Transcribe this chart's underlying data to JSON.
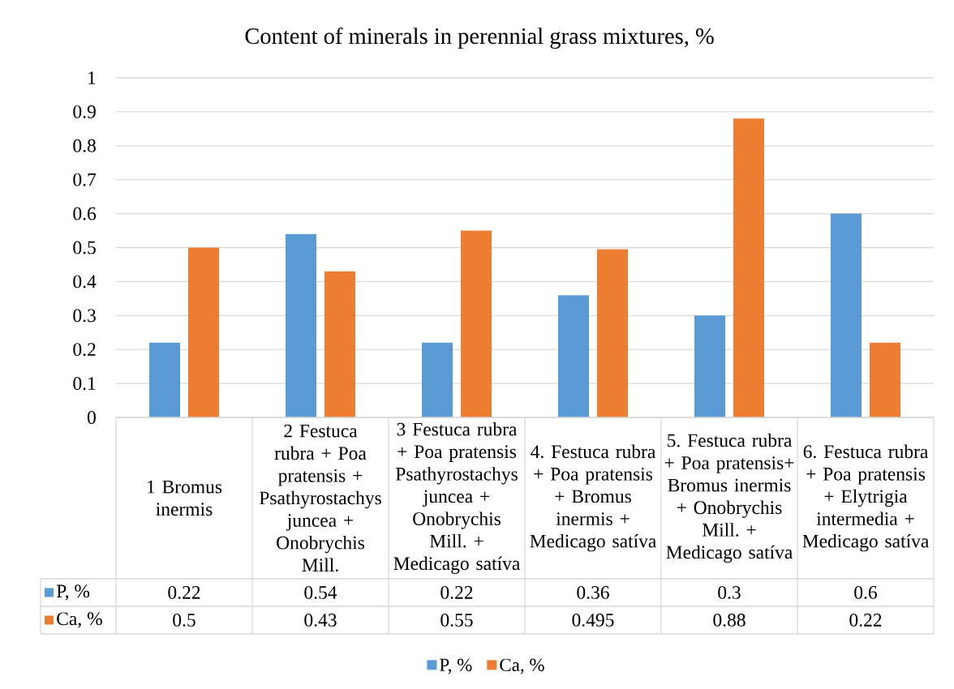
{
  "chart_data": {
    "type": "bar",
    "title": "Content of minerals in perennial grass mixtures, %",
    "categories": [
      "1 Bromus inermis",
      "2 Festuca rubra + Poa pratensis + Psathyrostachys juncea + Onobrychis Mill.",
      "3 Festuca rubra + Poa pratensis Psathyrostachys juncea + Onobrychis Mill. + Medicago satíva",
      "4. Festuca rubra + Poa pratensis + Bromus inermis + Medicago satíva",
      "5. Festuca rubra + Poa pratensis+Bromus inermis + Onobrychis Mill. + Medicago satíva",
      "6. Festuca rubra + Poa pratensis + Elytrigia intermedia + Medicago satíva"
    ],
    "series": [
      {
        "name": "P, %",
        "color": "#5b9bd5",
        "values": [
          0.22,
          0.54,
          0.22,
          0.36,
          0.3,
          0.6
        ]
      },
      {
        "name": "Ca, %",
        "color": "#ed7d31",
        "values": [
          0.5,
          0.43,
          0.55,
          0.495,
          0.88,
          0.22
        ]
      }
    ],
    "ylim": [
      0,
      1
    ],
    "yticks": [
      0,
      0.1,
      0.2,
      0.3,
      0.4,
      0.5,
      0.6,
      0.7,
      0.8,
      0.9,
      1
    ],
    "grid": "y",
    "legend": "bottom",
    "data_labels": true
  }
}
